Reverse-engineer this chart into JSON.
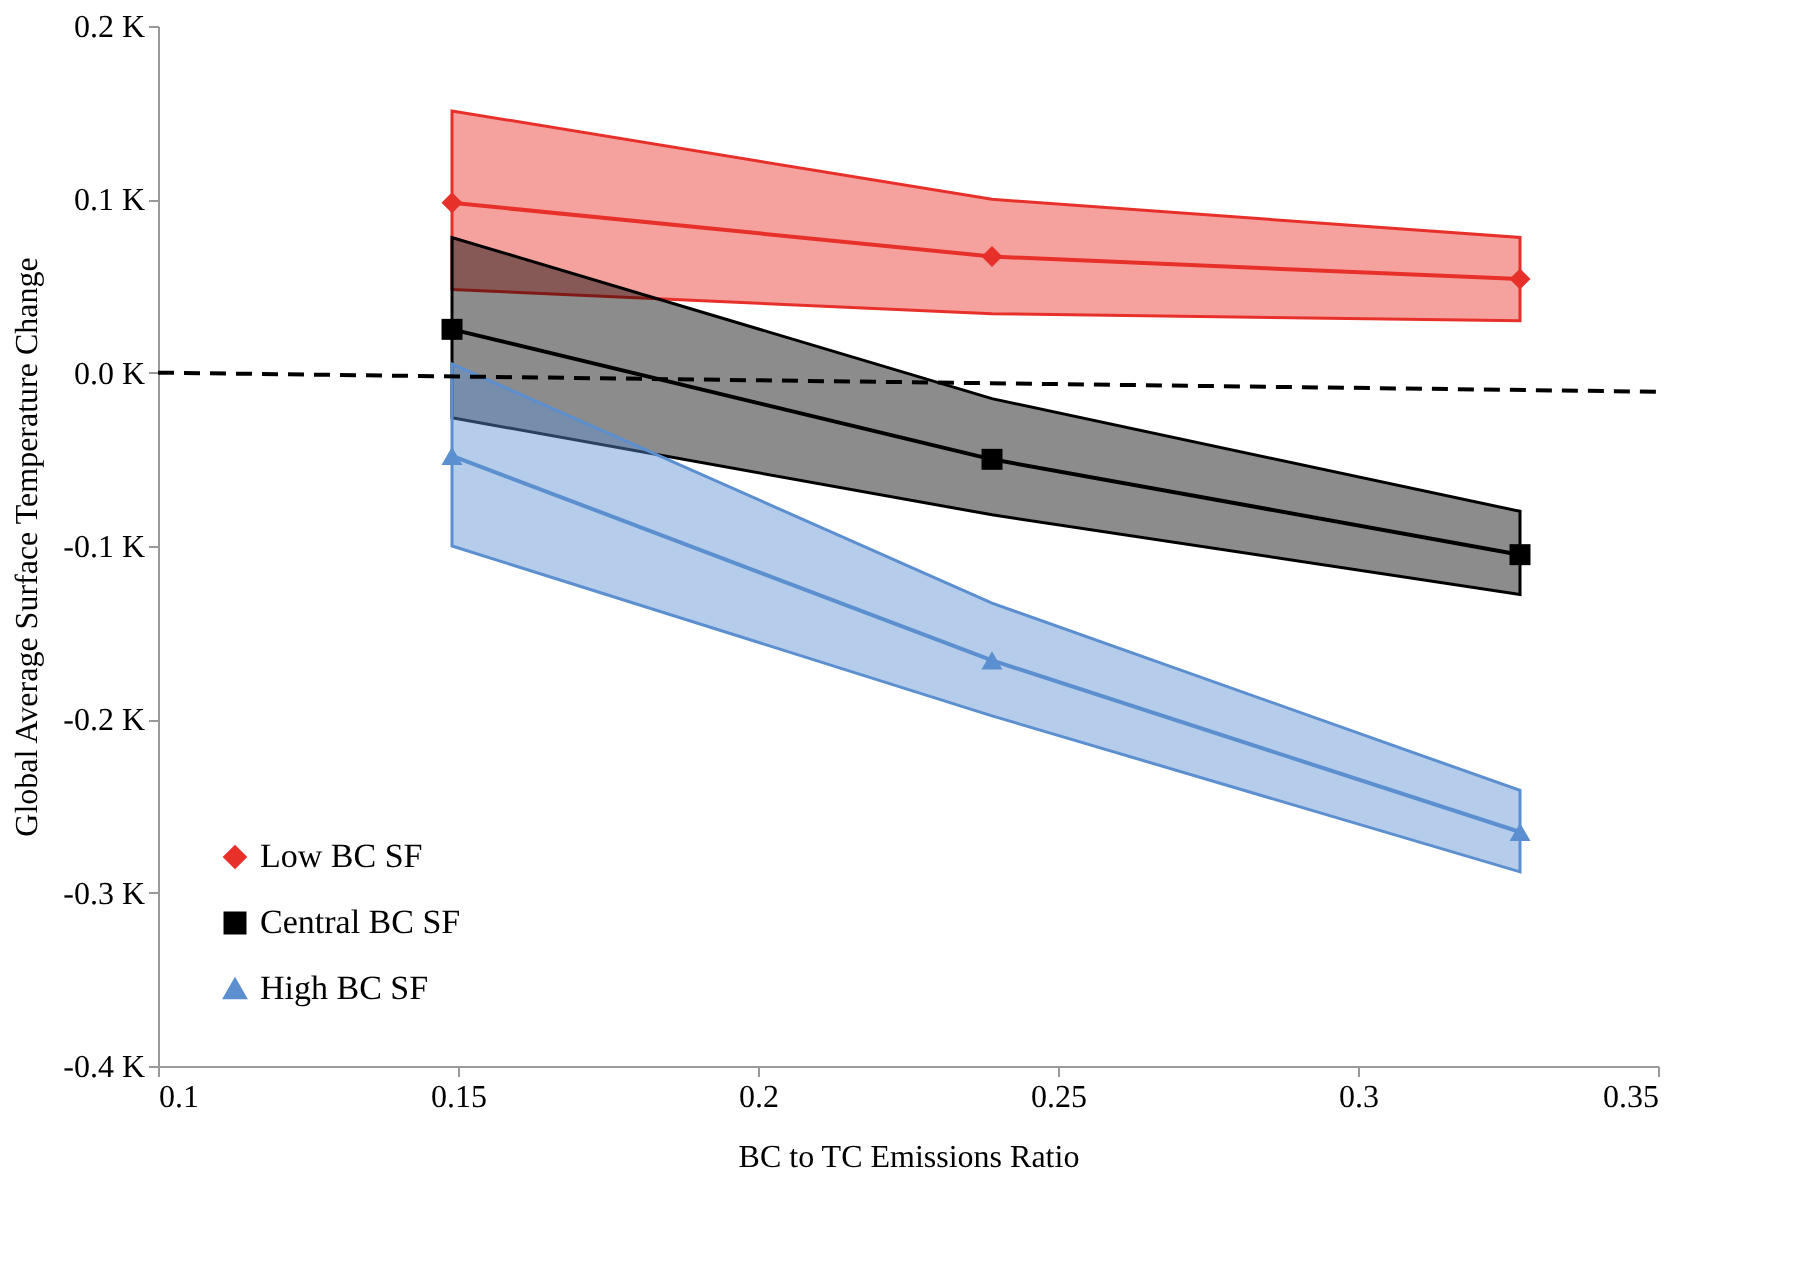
{
  "chart_data": {
    "type": "line",
    "xlabel": "BC to TC Emissions Ratio",
    "ylabel": "Global Average Surface Temperature Change",
    "xlim": [
      0.1,
      0.35
    ],
    "xticks": [
      0.1,
      0.15,
      0.2,
      0.25,
      0.3,
      0.35
    ],
    "ylim": [
      -0.4,
      0.2
    ],
    "yticks": [
      {
        "value": -0.4,
        "label": "-0.4 K"
      },
      {
        "value": -0.3,
        "label": "-0.3 K"
      },
      {
        "value": -0.2,
        "label": "-0.2 K"
      },
      {
        "value": -0.1,
        "label": "-0.1 K"
      },
      {
        "value": 0.0,
        "label": "0.0 K"
      },
      {
        "value": 0.1,
        "label": "0.1 K"
      },
      {
        "value": 0.2,
        "label": "0.2 K"
      }
    ],
    "grid": false,
    "legend": "bottom left",
    "line_style": "solid",
    "series": [
      {
        "name": "Low BC SF",
        "color": "#e8302a",
        "marker": "diamond",
        "x": [
          0.149,
          0.239,
          0.327
        ],
        "values": [
          0.098,
          0.067,
          0.054
        ],
        "lower": [
          0.048,
          0.034,
          0.03
        ],
        "upper": [
          0.151,
          0.1,
          0.078
        ]
      },
      {
        "name": "Central BC SF",
        "color": "#000000",
        "marker": "square",
        "x": [
          0.149,
          0.239,
          0.327
        ],
        "values": [
          0.025,
          -0.05,
          -0.105
        ],
        "lower": [
          -0.026,
          -0.082,
          -0.128
        ],
        "upper": [
          0.078,
          -0.015,
          -0.08
        ]
      },
      {
        "name": "High BC SF",
        "color": "#5b8fd0",
        "marker": "triangle",
        "x": [
          0.149,
          0.239,
          0.327
        ],
        "values": [
          -0.048,
          -0.166,
          -0.265
        ],
        "lower": [
          -0.1,
          -0.198,
          -0.288
        ],
        "upper": [
          0.005,
          -0.133,
          -0.241
        ]
      },
      {
        "color": "#000000",
        "marker": "none",
        "line_style": "dashed",
        "x": [
          0.1,
          0.35
        ],
        "values": [
          0.0,
          -0.011
        ]
      }
    ]
  }
}
